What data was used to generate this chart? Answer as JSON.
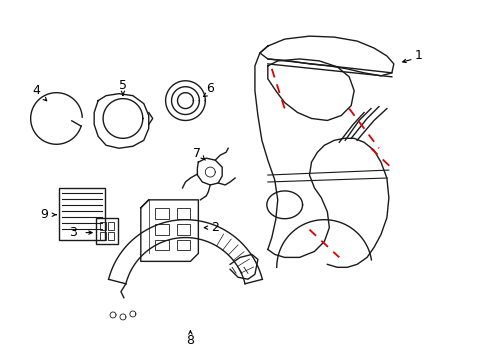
{
  "bg_color": "#ffffff",
  "line_color": "#1a1a1a",
  "red_dash_color": "#dd0000",
  "label_color": "#000000",
  "fig_width": 4.9,
  "fig_height": 3.6,
  "dpi": 100
}
